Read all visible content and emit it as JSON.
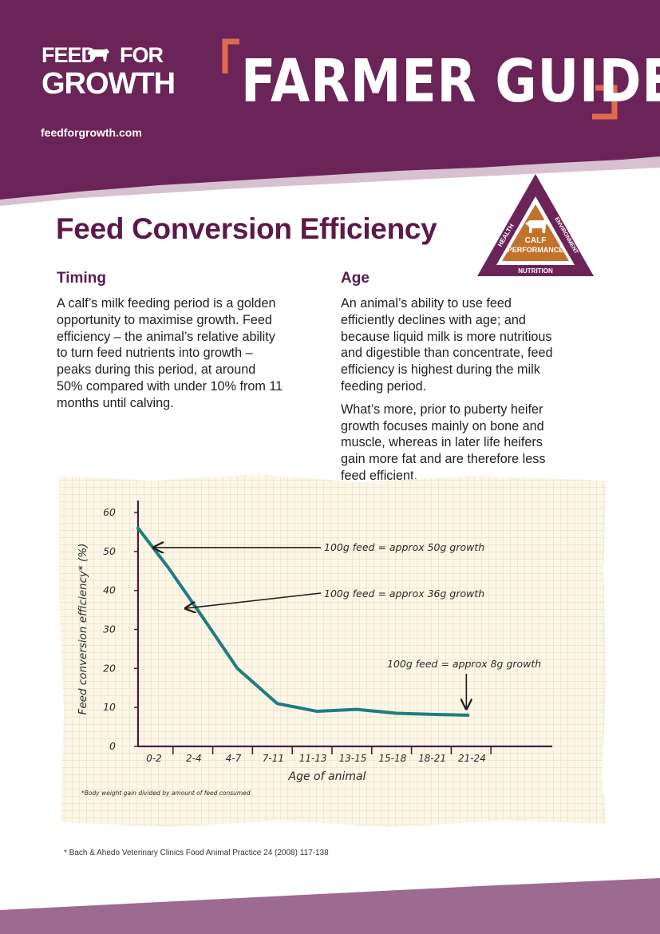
{
  "header": {
    "logo_line1_a": "FEED",
    "logo_line1_b": "FOR",
    "logo_line2": "GROWTH",
    "website": "feedforgrowth.com",
    "guide_title": "FARMER GUIDE",
    "brand_color": "#6b2457",
    "accent_color": "#e06a4e"
  },
  "page_title": "Feed Conversion Efficiency",
  "badge": {
    "top_left": "HEALTH",
    "top_right": "ENVIRONMENT",
    "center_line1": "CALF",
    "center_line2": "PERFORMANCE",
    "bottom": "NUTRITION"
  },
  "timing": {
    "heading": "Timing",
    "lines": [
      "A calf’s milk feeding period is a golden",
      "opportunity to maximise growth. Feed",
      "efficiency – the animal’s relative ability",
      "to turn feed nutrients into growth –",
      "peaks during this period, at around",
      "50% compared with under 10% from 11",
      "months until calving."
    ]
  },
  "age": {
    "heading": "Age",
    "p1_lines": [
      "An animal’s ability to use feed",
      "efficiently declines with age; and",
      "because liquid milk is more nutritious",
      "and digestible than concentrate, feed",
      "efficiency is highest during the milk",
      "feeding period."
    ],
    "p2_lines": [
      "What’s more, prior to puberty heifer",
      "growth focuses mainly on bone and",
      "muscle, whereas in later life heifers",
      "gain more fat and are therefore less",
      "feed efficient."
    ]
  },
  "chart_data": {
    "type": "line",
    "xlabel": "Age of animal",
    "ylabel": "Feed conversion efficiency* (%)",
    "categories": [
      "0-2",
      "2-4",
      "4-7",
      "7-11",
      "11-13",
      "13-15",
      "15-18",
      "18-21",
      "21-24"
    ],
    "x": [
      0,
      0.75,
      1.5,
      2.5,
      3.5,
      4.5,
      5.5,
      6.5,
      7.5,
      8.3
    ],
    "values": [
      56,
      46,
      35,
      20,
      11,
      9,
      9.5,
      8.5,
      8.2,
      8
    ],
    "ylim": [
      0,
      60
    ],
    "yticks": [
      0,
      10,
      20,
      30,
      40,
      50,
      60
    ],
    "line_color": "#1d7d80",
    "grid": true,
    "annotations": [
      {
        "text": "100g feed = approx 50g growth",
        "x": 0.35,
        "y": 51
      },
      {
        "text": "100g feed = approx 36g growth",
        "x": 0.95,
        "y": 35
      },
      {
        "text": "100g feed = approx 8g growth",
        "x": 8.3,
        "y": 8
      }
    ],
    "note": "*Body weight gain divided by amount of feed consumed"
  },
  "footnote": "* Bach & Ahedo Veterinary Clinics Food Animal Practice 24 (2008) 117-138"
}
